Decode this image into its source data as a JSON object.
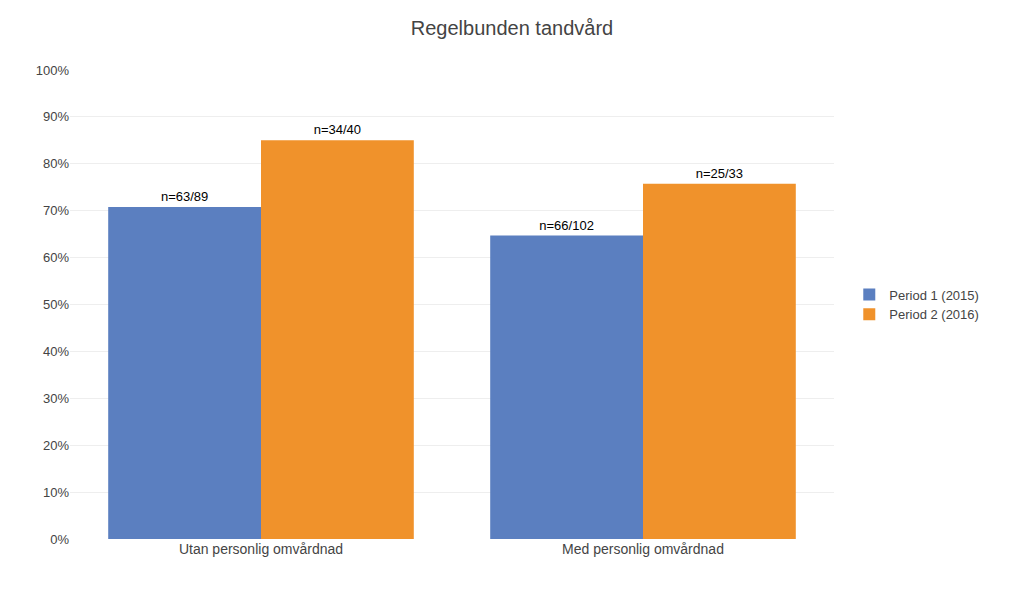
{
  "chart_data": {
    "type": "bar",
    "title": "Regelbunden tandvård",
    "categories": [
      "Utan personlig omvårdnad",
      "Med personlig omvårdnad"
    ],
    "series": [
      {
        "name": "Period 1 (2015)",
        "color": "#5B7FC0",
        "values": [
          0.7079,
          0.6471
        ],
        "value_labels": [
          "n=63/89",
          "n=66/102"
        ]
      },
      {
        "name": "Period 2 (2016)",
        "color": "#F0922B",
        "values": [
          0.85,
          0.7576
        ],
        "value_labels": [
          "n=34/40",
          "n=25/33"
        ]
      }
    ],
    "ylim": [
      0,
      1.0
    ],
    "yticks": [
      {
        "value": 0.0,
        "label": "0%"
      },
      {
        "value": 0.1,
        "label": "10%"
      },
      {
        "value": 0.2,
        "label": "20%"
      },
      {
        "value": 0.3,
        "label": "30%"
      },
      {
        "value": 0.4,
        "label": "40%"
      },
      {
        "value": 0.5,
        "label": "50%"
      },
      {
        "value": 0.6,
        "label": "60%"
      },
      {
        "value": 0.7,
        "label": "70%"
      },
      {
        "value": 0.8,
        "label": "80%"
      },
      {
        "value": 0.9,
        "label": "90%"
      },
      {
        "value": 1.0,
        "label": "100%"
      }
    ],
    "grid": true,
    "legend": "right",
    "data_labels": true
  }
}
